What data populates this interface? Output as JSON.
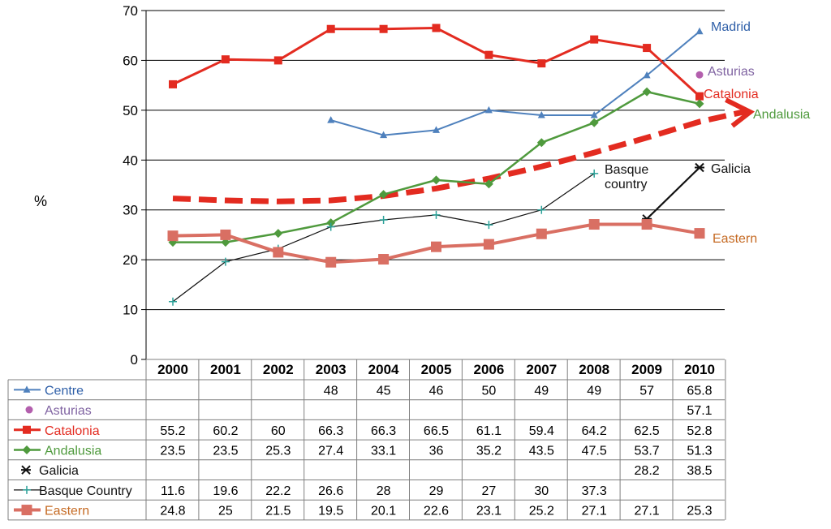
{
  "chart_data": {
    "type": "line",
    "ylabel": "%",
    "ylim": [
      0,
      70
    ],
    "yticks": [
      "0",
      "10",
      "20",
      "30",
      "40",
      "50",
      "60",
      "70"
    ],
    "categories": [
      "2000",
      "2001",
      "2002",
      "2003",
      "2004",
      "2005",
      "2006",
      "2007",
      "2008",
      "2009",
      "2010"
    ],
    "series": [
      {
        "key": "centre",
        "name": "Centre",
        "color": "#4f81bd",
        "marker": "triangle",
        "values": [
          null,
          null,
          null,
          48,
          45,
          46,
          50,
          49,
          49,
          57,
          65.8
        ],
        "labels": [
          "",
          "",
          "",
          "48",
          "45",
          "46",
          "50",
          "49",
          "49",
          "57",
          "65.8"
        ],
        "annotation": "Madrid"
      },
      {
        "key": "asturias",
        "name": "Asturias",
        "color": "#b35fad",
        "marker": "dot",
        "values": [
          null,
          null,
          null,
          null,
          null,
          null,
          null,
          null,
          null,
          null,
          57.1
        ],
        "labels": [
          "",
          "",
          "",
          "",
          "",
          "",
          "",
          "",
          "",
          "",
          "57.1"
        ],
        "annotation": "Asturias"
      },
      {
        "key": "catalonia",
        "name": "Catalonia",
        "color": "#e32b20",
        "marker": "square",
        "values": [
          55.2,
          60.2,
          60,
          66.3,
          66.3,
          66.5,
          61.1,
          59.4,
          64.2,
          62.5,
          52.8
        ],
        "labels": [
          "55.2",
          "60.2",
          "60",
          "66.3",
          "66.3",
          "66.5",
          "61.1",
          "59.4",
          "64.2",
          "62.5",
          "52.8"
        ],
        "annotation": "Catalonia"
      },
      {
        "key": "andalusia",
        "name": "Andalusia",
        "color": "#4f9a3d",
        "marker": "diamond",
        "values": [
          23.5,
          23.5,
          25.3,
          27.4,
          33.1,
          36,
          35.2,
          43.5,
          47.5,
          53.7,
          51.3
        ],
        "labels": [
          "23.5",
          "23.5",
          "25.3",
          "27.4",
          "33.1",
          "36",
          "35.2",
          "43.5",
          "47.5",
          "53.7",
          "51.3"
        ],
        "annotation": "Andalusia"
      },
      {
        "key": "galicia",
        "name": "Galicia",
        "color": "#111111",
        "marker": "asterisk",
        "values": [
          null,
          null,
          null,
          null,
          null,
          null,
          null,
          null,
          null,
          28.2,
          38.5
        ],
        "labels": [
          "",
          "",
          "",
          "",
          "",
          "",
          "",
          "",
          "",
          "28.2",
          "38.5"
        ],
        "annotation": "Galicia"
      },
      {
        "key": "basque",
        "name": "Basque Country",
        "color": "#111111",
        "marker": "plus",
        "values": [
          11.6,
          19.6,
          22.2,
          26.6,
          28,
          29,
          27,
          30,
          37.3,
          null,
          null
        ],
        "labels": [
          "11.6",
          "19.6",
          "22.2",
          "26.6",
          "28",
          "29",
          "27",
          "30",
          "37.3",
          "",
          ""
        ],
        "annotation": "Basque country"
      },
      {
        "key": "eastern",
        "name": "Eastern",
        "color": "#d96f63",
        "marker": "bigsquare",
        "values": [
          24.8,
          25,
          21.5,
          19.5,
          20.1,
          22.6,
          23.1,
          25.2,
          27.1,
          27.1,
          25.3
        ],
        "labels": [
          "24.8",
          "25",
          "21.5",
          "19.5",
          "20.1",
          "22.6",
          "23.1",
          "25.2",
          "27.1",
          "27.1",
          "25.3"
        ],
        "annotation": "Eastern"
      }
    ],
    "trend": {
      "color": "#e32b20",
      "points": [
        [
          2000,
          32.3
        ],
        [
          2001,
          31.9
        ],
        [
          2002,
          31.7
        ],
        [
          2003,
          31.9
        ],
        [
          2004,
          32.8
        ],
        [
          2005,
          34.3
        ],
        [
          2006,
          36.3
        ],
        [
          2007,
          38.7
        ],
        [
          2008,
          41.5
        ],
        [
          2009,
          44.5
        ],
        [
          2010,
          47.7
        ],
        [
          2010.9,
          49.8
        ]
      ]
    }
  },
  "colors": {
    "gridline": "#000000",
    "table_border": "#7f7f7f",
    "centre_label": "#2e5fa8",
    "asturias_label": "#8064a2",
    "catalonia_label": "#e32b20",
    "andalusia_label": "#4f9a3d",
    "galicia_label": "#111111",
    "basque_label": "#111111",
    "eastern_label": "#c56a23"
  }
}
